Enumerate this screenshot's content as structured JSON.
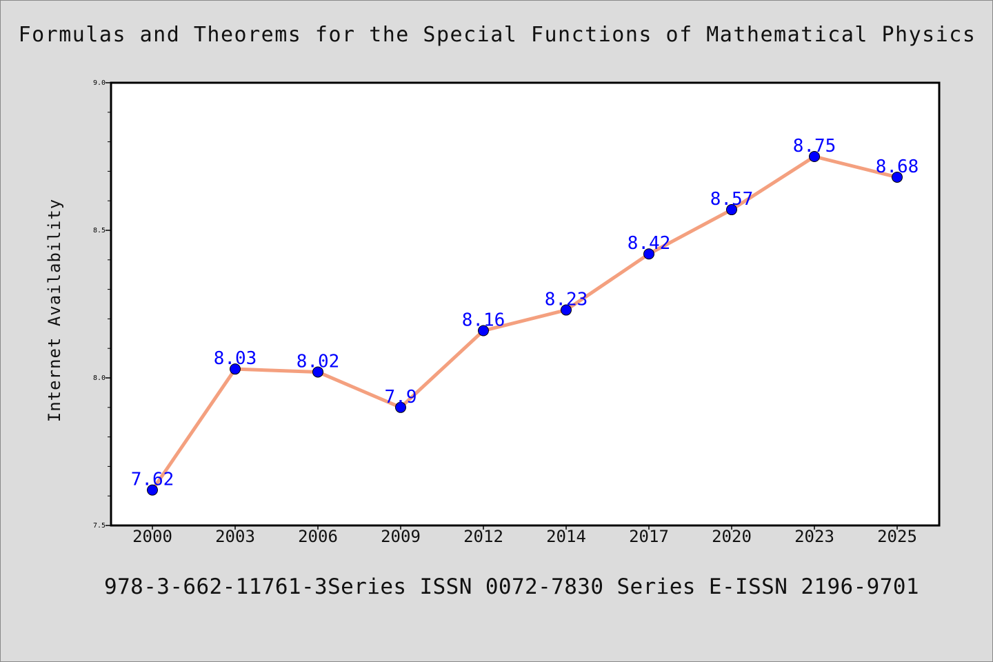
{
  "title": "Formulas and Theorems for the Special Functions of Mathematical Physics",
  "footer": "978-3-662-11761-3Series ISSN 0072-7830 Series E-ISSN 2196-9701",
  "chart_data": {
    "type": "line",
    "title": "Formulas and Theorems for the Special Functions of Mathematical Physics",
    "xlabel": "",
    "ylabel": "Internet Availability",
    "categories": [
      "2000",
      "2003",
      "2006",
      "2009",
      "2012",
      "2014",
      "2017",
      "2020",
      "2023",
      "2025"
    ],
    "values": [
      7.62,
      8.03,
      8.02,
      7.9,
      8.16,
      8.23,
      8.42,
      8.57,
      8.75,
      8.68
    ],
    "data_labels": [
      "7.62",
      "8.03",
      "8.02",
      "7.9",
      "8.16",
      "8.23",
      "8.42",
      "8.57",
      "8.75",
      "8.68"
    ],
    "ylim": [
      7.5,
      9.0
    ],
    "y_ticks": [
      7.5,
      8.0,
      8.5,
      9.0
    ],
    "y_tick_labels": [
      "7.5",
      "8.0",
      "8.5",
      "9.0"
    ],
    "y_minor_step": 0.1,
    "grid": false,
    "legend": "none",
    "colors": {
      "line": "#f4a07f",
      "marker": "#0000ff",
      "data_label": "#0000ff",
      "axis": "#000000",
      "plot_background": "#ffffff",
      "page_background": "#dcdcdc"
    }
  }
}
